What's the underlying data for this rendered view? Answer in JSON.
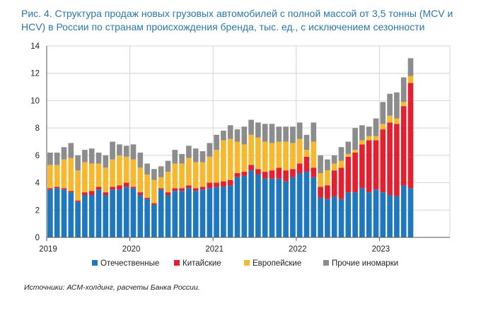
{
  "title": "Рис. 4. Структура продаж новых грузовых автомобилей с полной массой от 3,5 тонны (MCV и HCV) в России по странам происхождения бренда, тыс. ед., с исключением сезонности",
  "source": "Источники: АСМ-холдинг, расчеты Банка России.",
  "colors": {
    "domestic": "#1f78be",
    "chinese": "#e2202f",
    "european": "#f7b82e",
    "other": "#8c8c8c"
  },
  "chart_data": {
    "type": "bar",
    "stacked": true,
    "title": "Структура продаж новых грузовых автомобилей с полной массой от 3,5 тонны (MCV и HCV) в России по странам происхождения бренда",
    "ylabel": "тыс. ед.",
    "ylim": [
      0,
      14
    ],
    "yticks": [
      "0",
      "2",
      "4",
      "6",
      "8",
      "10",
      "12",
      "14"
    ],
    "xticks": [
      "2019",
      "2020",
      "2021",
      "2022",
      "2023"
    ],
    "grid": true,
    "legend_position": "bottom",
    "categories": [
      "2019-01",
      "2019-02",
      "2019-03",
      "2019-04",
      "2019-05",
      "2019-06",
      "2019-07",
      "2019-08",
      "2019-09",
      "2019-10",
      "2019-11",
      "2019-12",
      "2020-01",
      "2020-02",
      "2020-03",
      "2020-04",
      "2020-05",
      "2020-06",
      "2020-07",
      "2020-08",
      "2020-09",
      "2020-10",
      "2020-11",
      "2020-12",
      "2021-01",
      "2021-02",
      "2021-03",
      "2021-04",
      "2021-05",
      "2021-06",
      "2021-07",
      "2021-08",
      "2021-09",
      "2021-10",
      "2021-11",
      "2021-12",
      "2022-01",
      "2022-02",
      "2022-03",
      "2022-04",
      "2022-05",
      "2022-06",
      "2022-07",
      "2022-08",
      "2022-09",
      "2022-10",
      "2022-11",
      "2022-12",
      "2023-01",
      "2023-02",
      "2023-03",
      "2023-04",
      "2023-05"
    ],
    "series": [
      {
        "name": "Отечественные",
        "values": [
          3.5,
          3.6,
          3.5,
          3.3,
          2.6,
          3.1,
          3.1,
          3.5,
          3.1,
          3.5,
          3.5,
          3.7,
          3.6,
          3.1,
          2.8,
          2.4,
          3.5,
          3.1,
          3.4,
          3.4,
          3.6,
          3.4,
          3.5,
          3.6,
          3.7,
          3.7,
          3.8,
          4.4,
          4.5,
          4.9,
          4.6,
          4.3,
          4.3,
          4.3,
          4.1,
          4.4,
          4.7,
          4.8,
          4.4,
          2.9,
          2.8,
          3.0,
          2.8,
          3.3,
          3.3,
          3.6,
          3.3,
          3.5,
          3.3,
          3.1,
          3.0,
          3.8,
          3.6
        ]
      },
      {
        "name": "Китайские",
        "values": [
          0.1,
          0.1,
          0.1,
          0.1,
          0.1,
          0.2,
          0.3,
          0.2,
          0.2,
          0.2,
          0.3,
          0.3,
          0.1,
          0.2,
          0.1,
          0.1,
          0.1,
          0.2,
          0.2,
          0.2,
          0.2,
          0.2,
          0.2,
          0.4,
          0.3,
          0.4,
          0.4,
          0.3,
          0.3,
          0.4,
          0.4,
          0.5,
          0.6,
          0.8,
          0.8,
          0.6,
          0.7,
          1.1,
          0.7,
          0.8,
          1.0,
          1.9,
          2.3,
          2.6,
          2.9,
          3.2,
          3.8,
          3.6,
          4.6,
          5.3,
          5.3,
          5.8,
          7.7
        ]
      },
      {
        "name": "Европейские",
        "values": [
          1.7,
          1.6,
          2.1,
          2.4,
          2.2,
          2.2,
          2.0,
          1.7,
          1.8,
          2.0,
          2.2,
          1.9,
          2.0,
          1.8,
          1.7,
          1.7,
          0.8,
          1.5,
          1.8,
          1.8,
          2.0,
          1.9,
          1.8,
          1.9,
          2.4,
          3.0,
          3.0,
          2.3,
          2.0,
          2.2,
          2.3,
          2.2,
          2.0,
          1.9,
          2.1,
          1.9,
          1.8,
          0.5,
          1.9,
          1.0,
          1.1,
          0.5,
          0.5,
          0.2,
          0.2,
          0.3,
          0.3,
          0.3,
          0.4,
          0.5,
          0.4,
          0.3,
          0.5
        ]
      },
      {
        "name": "Прочие иномарки",
        "values": [
          0.9,
          0.9,
          0.9,
          1.1,
          1.1,
          0.9,
          1.1,
          0.8,
          0.9,
          1.3,
          0.8,
          0.8,
          1.1,
          1.1,
          0.8,
          0.8,
          0.8,
          0.8,
          1.0,
          0.7,
          0.9,
          1.0,
          0.8,
          1.0,
          1.1,
          0.7,
          1.0,
          0.9,
          1.3,
          1.1,
          1.1,
          1.3,
          1.4,
          1.1,
          1.1,
          1.2,
          1.2,
          1.1,
          1.4,
          1.3,
          0.8,
          0.6,
          1.0,
          0.9,
          1.6,
          1.1,
          0.7,
          1.3,
          1.6,
          1.6,
          1.9,
          1.8,
          1.3
        ]
      }
    ]
  }
}
